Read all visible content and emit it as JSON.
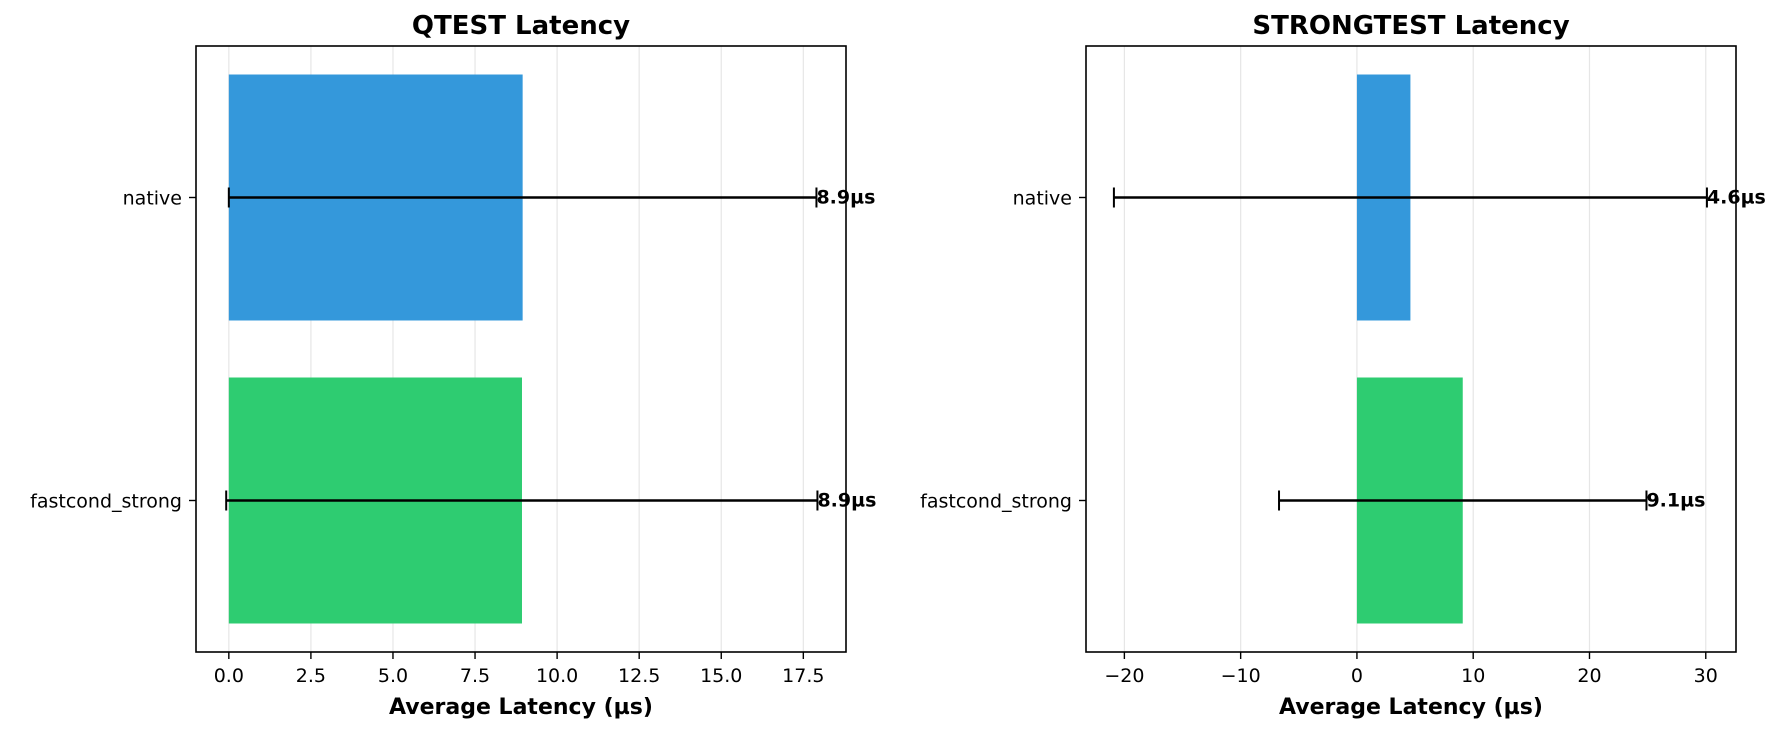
{
  "chart_data": [
    {
      "type": "bar",
      "orientation": "horizontal",
      "title": "QTEST Latency",
      "xlabel": "Average Latency (µs)",
      "ylabel": "",
      "categories": [
        "native",
        "fastcond_strong"
      ],
      "values": [
        8.95,
        8.93
      ],
      "error_low": [
        0.0,
        -0.08
      ],
      "error_high": [
        17.9,
        17.93
      ],
      "data_labels": [
        "8.9µs",
        "8.9µs"
      ],
      "bar_colors": [
        "#3498db",
        "#2ecc71"
      ],
      "xlim": [
        -1.0,
        18.8
      ],
      "xticks": [
        0,
        2.5,
        5,
        7.5,
        10,
        12.5,
        15,
        17.5
      ],
      "xtick_labels": [
        "0.0",
        "2.5",
        "5.0",
        "7.5",
        "10.0",
        "12.5",
        "15.0",
        "17.5"
      ],
      "grid": "x"
    },
    {
      "type": "bar",
      "orientation": "horizontal",
      "title": "STRONGTEST Latency",
      "xlabel": "Average Latency (µs)",
      "ylabel": "",
      "categories": [
        "native",
        "fastcond_strong"
      ],
      "values": [
        4.6,
        9.1
      ],
      "error_low": [
        -20.9,
        -6.7
      ],
      "error_high": [
        30.1,
        24.9
      ],
      "data_labels": [
        "4.6µs",
        "9.1µs"
      ],
      "bar_colors": [
        "#3498db",
        "#2ecc71"
      ],
      "xlim": [
        -23.3,
        32.6
      ],
      "xticks": [
        -20,
        -10,
        0,
        10,
        20,
        30
      ],
      "xtick_labels": [
        "−20",
        "−10",
        "0",
        "10",
        "20",
        "30"
      ],
      "grid": "x"
    }
  ]
}
